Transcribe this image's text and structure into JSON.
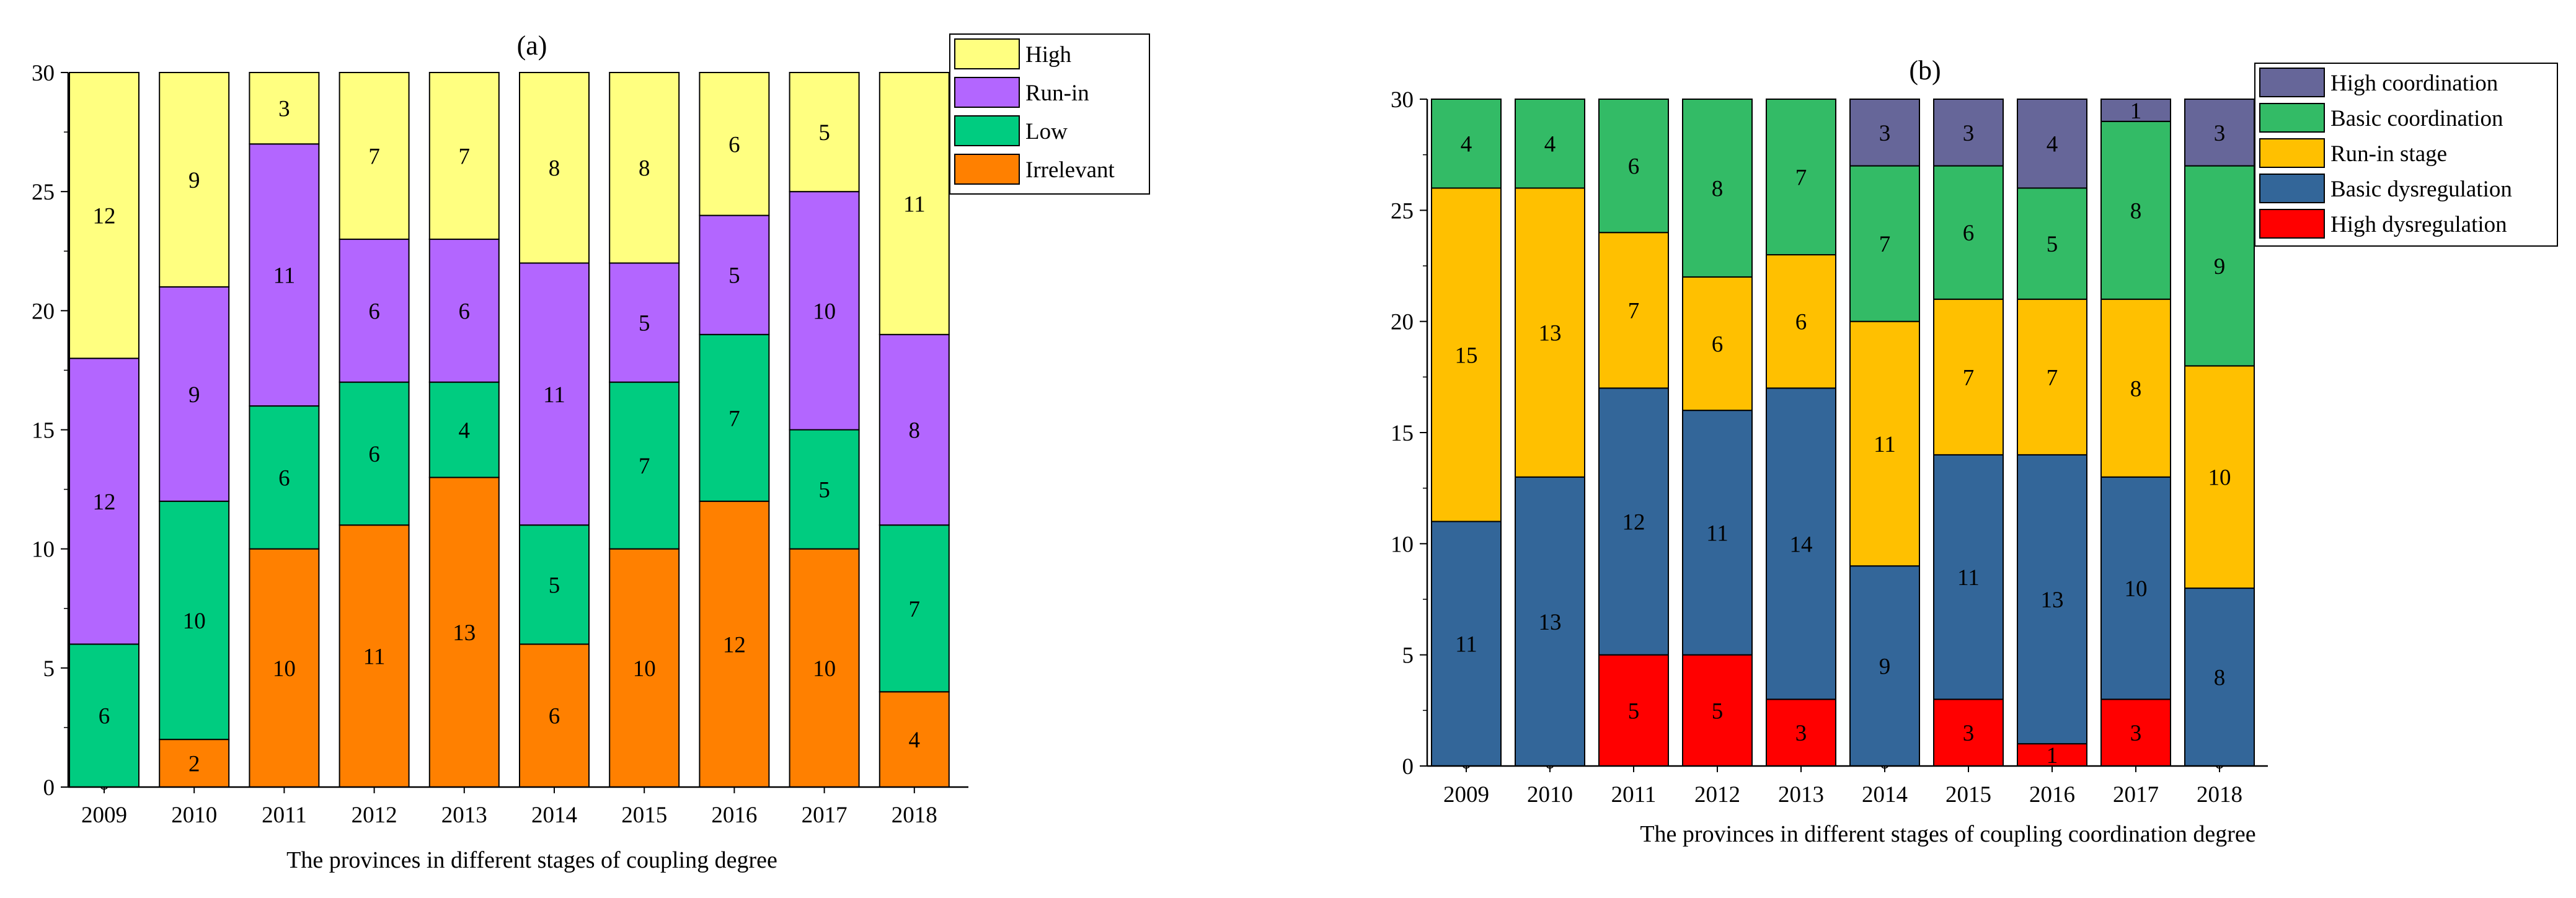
{
  "chart_data": [
    {
      "type": "bar",
      "stacked": true,
      "title": "(a)",
      "xlabel": "The provinces in different stages of coupling degree",
      "ylabel": "",
      "ylim": [
        0,
        30
      ],
      "yticks": [
        "0",
        "5",
        "10",
        "15",
        "20",
        "25",
        "30"
      ],
      "categories": [
        "2009",
        "2010",
        "2011",
        "2012",
        "2013",
        "2014",
        "2015",
        "2016",
        "2017",
        "2018"
      ],
      "legend_position": "top-right",
      "series": [
        {
          "name": "Irrelevant",
          "color": "#ff8000",
          "values": [
            0,
            2,
            10,
            11,
            13,
            6,
            10,
            12,
            10,
            4
          ],
          "labels": [
            "0",
            "2",
            "10",
            "11",
            "13",
            "6",
            "10",
            "12",
            "10",
            "4"
          ]
        },
        {
          "name": "Low",
          "color": "#00cc80",
          "values": [
            6,
            10,
            6,
            6,
            4,
            5,
            7,
            7,
            5,
            7
          ],
          "labels": [
            "6",
            "10",
            "6",
            "6",
            "4",
            "5",
            "7",
            "7",
            "5",
            "7"
          ]
        },
        {
          "name": "Run-in",
          "color": "#b366ff",
          "values": [
            12,
            9,
            11,
            6,
            6,
            11,
            5,
            5,
            10,
            8
          ],
          "labels": [
            "12",
            "9",
            "11",
            "6",
            "6",
            "11",
            "5",
            "5",
            "10",
            "8"
          ]
        },
        {
          "name": "High",
          "color": "#ffff80",
          "values": [
            12,
            9,
            3,
            7,
            7,
            8,
            8,
            6,
            5,
            11
          ],
          "labels": [
            "12",
            "9",
            "3",
            "7",
            "7",
            "8",
            "8",
            "6",
            "5",
            "11"
          ]
        }
      ],
      "legend_order": [
        "High",
        "Run-in",
        "Low",
        "Irrelevant"
      ]
    },
    {
      "type": "bar",
      "stacked": true,
      "title": "(b)",
      "xlabel": "The provinces in different stages of coupling coordination degree",
      "ylabel": "",
      "ylim": [
        0,
        30
      ],
      "yticks": [
        "0",
        "5",
        "10",
        "15",
        "20",
        "25",
        "30"
      ],
      "categories": [
        "2009",
        "2010",
        "2011",
        "2012",
        "2013",
        "2014",
        "2015",
        "2016",
        "2017",
        "2018"
      ],
      "legend_position": "top-right",
      "series": [
        {
          "name": "High dysregulation",
          "color": "#ff0000",
          "values": [
            0,
            0,
            5,
            5,
            3,
            0,
            3,
            1,
            3,
            0
          ],
          "labels": [
            "0",
            "0",
            "5",
            "5",
            "3",
            "0",
            "3",
            "1",
            "3",
            "0"
          ]
        },
        {
          "name": "Basic dysregulation",
          "color": "#336699",
          "values": [
            11,
            13,
            12,
            11,
            14,
            9,
            11,
            13,
            10,
            8
          ],
          "labels": [
            "11",
            "13",
            "12",
            "11",
            "14",
            "9",
            "11",
            "13",
            "10",
            "8"
          ]
        },
        {
          "name": "Run-in stage",
          "color": "#ffc000",
          "values": [
            15,
            13,
            7,
            6,
            6,
            11,
            7,
            7,
            8,
            10
          ],
          "labels": [
            "15",
            "13",
            "7",
            "6",
            "6",
            "11",
            "7",
            "7",
            "8",
            "10"
          ]
        },
        {
          "name": "Basic coordination",
          "color": "#33bb66",
          "values": [
            4,
            4,
            6,
            8,
            7,
            7,
            6,
            5,
            8,
            9
          ],
          "labels": [
            "4",
            "4",
            "6",
            "8",
            "7",
            "7",
            "6",
            "5",
            "8",
            "9"
          ]
        },
        {
          "name": "High coordination",
          "color": "#666699",
          "values": [
            0,
            0,
            0,
            0,
            0,
            3,
            3,
            4,
            1,
            3
          ],
          "labels": [
            "",
            "",
            "",
            "",
            "",
            "3",
            "3",
            "4",
            "1",
            "3"
          ]
        }
      ],
      "legend_order": [
        "High coordination",
        "Basic coordination",
        "Run-in stage",
        "Basic dysregulation",
        "High dysregulation"
      ]
    }
  ]
}
